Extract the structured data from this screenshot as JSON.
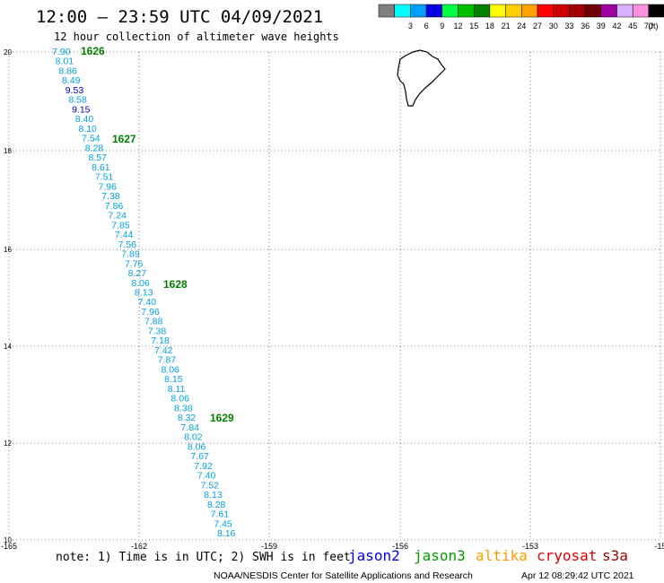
{
  "header": {
    "title": "12:00 – 23:59 UTC 04/09/2021",
    "subtitle": "12 hour collection of altimeter wave heights"
  },
  "legend": {
    "unit": "(ft)",
    "bins": [
      {
        "label": "",
        "color": "#808080"
      },
      {
        "label": "3",
        "color": "#00ffff"
      },
      {
        "label": "6",
        "color": "#00a0ff"
      },
      {
        "label": "9",
        "color": "#0000e0"
      },
      {
        "label": "12",
        "color": "#00ff40"
      },
      {
        "label": "15",
        "color": "#00c000"
      },
      {
        "label": "18",
        "color": "#008000"
      },
      {
        "label": "21",
        "color": "#ffff00"
      },
      {
        "label": "24",
        "color": "#ffd000"
      },
      {
        "label": "27",
        "color": "#ffa000"
      },
      {
        "label": "30",
        "color": "#ff0000"
      },
      {
        "label": "33",
        "color": "#d00000"
      },
      {
        "label": "36",
        "color": "#a00000"
      },
      {
        "label": "39",
        "color": "#700000"
      },
      {
        "label": "42",
        "color": "#a000a0"
      },
      {
        "label": "45",
        "color": "#d8b0ff"
      },
      {
        "label": "70",
        "color": "#ff90e0"
      },
      {
        "label": "",
        "color": "#000000"
      }
    ]
  },
  "axes": {
    "lon_ticks": [
      "-165",
      "-162",
      "-159",
      "-156",
      "-153",
      "-15"
    ],
    "lat_ticks": [
      "20",
      "18",
      "16",
      "14",
      "12",
      "10"
    ]
  },
  "track": {
    "color_light": "#00a0e0",
    "color_dark": "#0000a0",
    "readings": [
      {
        "v": "7.90"
      },
      {
        "v": "8.01"
      },
      {
        "v": "8.86"
      },
      {
        "v": "8.49"
      },
      {
        "v": "9.53"
      },
      {
        "v": "8.58"
      },
      {
        "v": "9.15"
      },
      {
        "v": "8.40"
      },
      {
        "v": "8.10"
      },
      {
        "v": "7.54"
      },
      {
        "v": "8.28"
      },
      {
        "v": "8.57"
      },
      {
        "v": "8.61"
      },
      {
        "v": "7.51"
      },
      {
        "v": "7.96"
      },
      {
        "v": "7.38"
      },
      {
        "v": "7.86"
      },
      {
        "v": "7.24"
      },
      {
        "v": "7.85"
      },
      {
        "v": "7.44"
      },
      {
        "v": "7.56"
      },
      {
        "v": "7.89"
      },
      {
        "v": "7.76"
      },
      {
        "v": "8.27"
      },
      {
        "v": "8.06"
      },
      {
        "v": "8.13"
      },
      {
        "v": "7.40"
      },
      {
        "v": "7.96"
      },
      {
        "v": "7.88"
      },
      {
        "v": "7.38"
      },
      {
        "v": "7.18"
      },
      {
        "v": "7.42"
      },
      {
        "v": "7.87"
      },
      {
        "v": "8.06"
      },
      {
        "v": "8.15"
      },
      {
        "v": "8.11"
      },
      {
        "v": "8.06"
      },
      {
        "v": "8.38"
      },
      {
        "v": "8.32"
      },
      {
        "v": "7.84"
      },
      {
        "v": "8.02"
      },
      {
        "v": "8.06"
      },
      {
        "v": "7.67"
      },
      {
        "v": "7.92"
      },
      {
        "v": "7.40"
      },
      {
        "v": "7.52"
      },
      {
        "v": "8.13"
      },
      {
        "v": "8.28"
      },
      {
        "v": "7.61"
      },
      {
        "v": "7.45"
      },
      {
        "v": "8.16"
      }
    ],
    "time_labels": [
      "1626",
      "1627",
      "1628",
      "1629"
    ]
  },
  "footer": {
    "note": "note:  1) Time is in UTC;  2) SWH is in feet",
    "satellites": [
      {
        "name": "jason2",
        "color": "#0000dd"
      },
      {
        "name": "jason3",
        "color": "#009900"
      },
      {
        "name": "altika",
        "color": "#ff9900"
      },
      {
        "name": "cryosat",
        "color": "#dd0000"
      },
      {
        "name": "s3a",
        "color": "#990000"
      }
    ],
    "credit": "NOAA/NESDIS Center for Satellite Applications and Research",
    "timestamp": "Apr 12 08:29:42 UTC 2021"
  }
}
